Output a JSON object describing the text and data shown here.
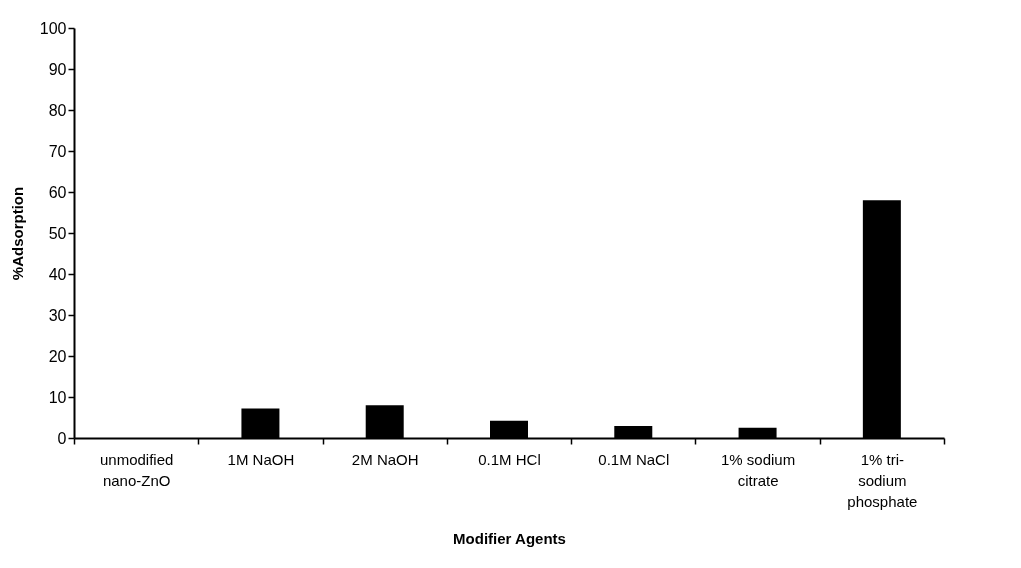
{
  "chart_data": {
    "type": "bar",
    "xlabel": "Modifier Agents",
    "ylabel": "%Adsorption",
    "categories": [
      "unmodified nano-ZnO",
      "1M NaOH",
      "2M NaOH",
      "0.1M HCl",
      "0.1M NaCl",
      "1% sodium citrate",
      "1% tri-sodium phosphate"
    ],
    "values": [
      0,
      7.2,
      8,
      4.2,
      2.9,
      2.5,
      58
    ],
    "color": "#000000",
    "ylim": [
      0,
      100
    ],
    "yticks": [
      0,
      10,
      20,
      30,
      40,
      50,
      60,
      70,
      80,
      90,
      100
    ],
    "grid": false
  }
}
